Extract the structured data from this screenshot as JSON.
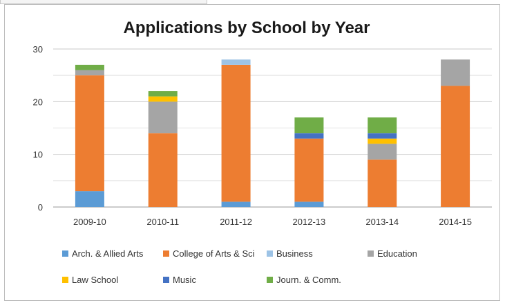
{
  "chart_data": {
    "type": "bar",
    "stacked": true,
    "title": "Applications by School by Year",
    "xlabel": "",
    "ylabel": "",
    "ylim": [
      0,
      30
    ],
    "yticks": [
      0,
      10,
      20,
      30
    ],
    "grid": true,
    "legend_position": "bottom",
    "categories": [
      "2009-10",
      "2010-11",
      "2011-12",
      "2012-13",
      "2013-14",
      "2014-15"
    ],
    "series": [
      {
        "name": "Arch. & Allied Arts",
        "color": "#5b9bd5",
        "values": [
          3,
          0,
          1,
          1,
          0,
          0
        ]
      },
      {
        "name": "College of Arts & Sci",
        "color": "#ed7d31",
        "values": [
          22,
          14,
          26,
          12,
          9,
          23
        ]
      },
      {
        "name": "Business",
        "color": "#9dc3e6",
        "values": [
          0,
          0,
          1,
          0,
          0,
          0
        ]
      },
      {
        "name": "Education",
        "color": "#a5a5a5",
        "values": [
          1,
          6,
          0,
          0,
          3,
          5
        ]
      },
      {
        "name": "Law School",
        "color": "#ffc000",
        "values": [
          0,
          1,
          0,
          0,
          1,
          0
        ]
      },
      {
        "name": "Music",
        "color": "#4472c4",
        "values": [
          0,
          0,
          0,
          1,
          1,
          0
        ]
      },
      {
        "name": "Journ. & Comm.",
        "color": "#70ad47",
        "values": [
          1,
          1,
          0,
          3,
          3,
          0
        ]
      }
    ]
  }
}
